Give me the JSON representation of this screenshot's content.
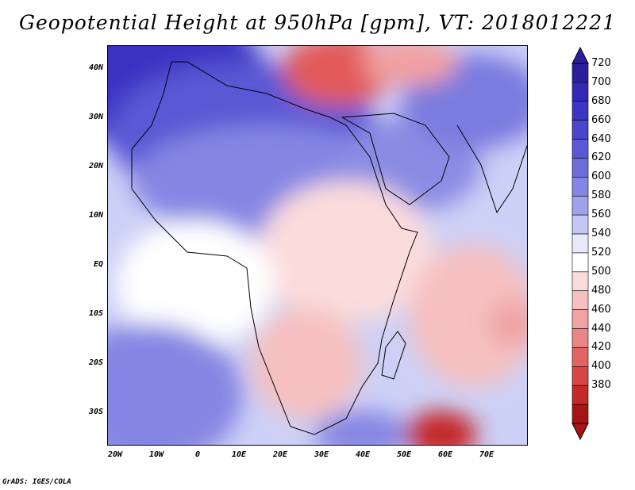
{
  "title": "Geopotential Height at 950hPa [gpm], VT: 2018012221",
  "footer": "GrADS: IGES/COLA",
  "lat_ticks": [
    "40N",
    "30N",
    "20N",
    "10N",
    "EQ",
    "10S",
    "20S",
    "30S"
  ],
  "lon_ticks": [
    "20W",
    "10W",
    "0",
    "10E",
    "20E",
    "30E",
    "40E",
    "50E",
    "60E",
    "70E"
  ],
  "colorbar": {
    "levels": [
      "720",
      "700",
      "680",
      "660",
      "640",
      "620",
      "600",
      "580",
      "560",
      "540",
      "520",
      "500",
      "480",
      "460",
      "440",
      "420",
      "400",
      "380"
    ],
    "colors": [
      "#2b1f9e",
      "#3228b5",
      "#3c34c4",
      "#4a45cc",
      "#5a58d4",
      "#6c6cdb",
      "#8586e3",
      "#9fa2eb",
      "#c4c7f3",
      "#e8e9fb",
      "#ffffff",
      "#fbdcdc",
      "#f6c0c0",
      "#f0a3a3",
      "#ea8585",
      "#e36363",
      "#d84545",
      "#c42828",
      "#a81414"
    ]
  },
  "colors": {
    "high": "#3a33c2",
    "mid_high": "#8a8ce3",
    "neutral": "#ffffff",
    "low": "#f7c5c5",
    "lowest": "#b81818"
  }
}
